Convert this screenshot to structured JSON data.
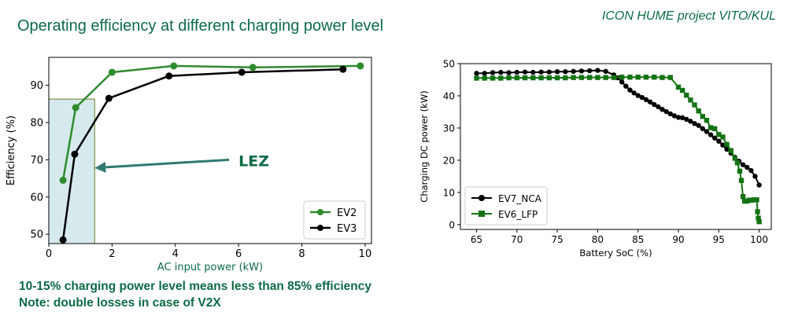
{
  "slide": {
    "title": "Operating efficiency at different charging power level",
    "project": "ICON HUME project VITO/KUL",
    "note_line1": "10-15% charging power level means less than 85% efficiency",
    "note_line2": "Note: double losses in case of V2X"
  },
  "colors": {
    "title_green": "#0b6b45",
    "ev2_green": "#2e8b2e",
    "ev3_black": "#000000",
    "ev6_green": "#137313",
    "lez_fill": "#cfe6ea",
    "lez_arrow": "#2f7a72"
  },
  "chart_data": [
    {
      "type": "line",
      "xlabel": "AC input power (kW)",
      "ylabel": "Efficiency (%)",
      "xlim": [
        0,
        10.2
      ],
      "ylim": [
        47.5,
        97.5
      ],
      "xticks": [
        0,
        2,
        4,
        6,
        8,
        10
      ],
      "yticks": [
        50,
        60,
        70,
        80,
        90
      ],
      "legend_position": "bottom-right",
      "series": [
        {
          "name": "EV2",
          "color": "#2e8b2e",
          "marker": "circle",
          "x": [
            0.45,
            0.85,
            2.0,
            3.95,
            6.45,
            9.85
          ],
          "y": [
            64.5,
            84.0,
            93.5,
            95.2,
            94.8,
            95.2
          ]
        },
        {
          "name": "EV3",
          "color": "#000000",
          "marker": "circle",
          "x": [
            0.45,
            0.82,
            1.9,
            3.8,
            6.1,
            9.3
          ],
          "y": [
            48.5,
            71.5,
            86.5,
            92.5,
            93.5,
            94.3
          ]
        }
      ],
      "annotation": {
        "text": "LEZ",
        "span_x": [
          0,
          1.45
        ],
        "span_y": [
          47.5,
          86.3
        ],
        "arrow_from_x": 5.7,
        "arrow_from_y": 70.0,
        "arrow_to_x": 1.45,
        "arrow_to_y": 67.8
      }
    },
    {
      "type": "line",
      "xlabel": "Battery SoC (%)",
      "ylabel": "Charging DC power (kW)",
      "xlim": [
        63.0,
        101.5
      ],
      "ylim": [
        -1.5,
        50.0
      ],
      "xticks": [
        65,
        70,
        75,
        80,
        85,
        90,
        95,
        100
      ],
      "yticks": [
        0,
        10,
        20,
        30,
        40,
        50
      ],
      "legend_position": "bottom-left",
      "series": [
        {
          "name": "EV7_NCA",
          "color": "#000000",
          "marker": "circle",
          "x": [
            65,
            66,
            67,
            68,
            69,
            70,
            71,
            72,
            73,
            74,
            75,
            76,
            77,
            78,
            79,
            80,
            81,
            82,
            82.5,
            83,
            83.5,
            84,
            84.5,
            85,
            85.5,
            86,
            86.5,
            87,
            87.5,
            88,
            88.5,
            89,
            89.5,
            90,
            90.5,
            91,
            91.5,
            92,
            92.5,
            93,
            93.5,
            94,
            94.5,
            95,
            95.5,
            96,
            96.5,
            97,
            97.5,
            98,
            98.5,
            99,
            99.5,
            100
          ],
          "y": [
            47.0,
            47.0,
            47.2,
            47.3,
            47.2,
            47.3,
            47.4,
            47.3,
            47.4,
            47.4,
            47.5,
            47.5,
            47.6,
            47.7,
            47.8,
            47.9,
            47.6,
            46.5,
            45.6,
            44.3,
            43.0,
            41.8,
            40.9,
            40.1,
            39.5,
            38.8,
            38.1,
            37.3,
            36.6,
            35.8,
            35.1,
            34.4,
            33.8,
            33.3,
            33.2,
            32.7,
            32.1,
            31.4,
            30.8,
            29.8,
            28.9,
            27.9,
            26.9,
            25.9,
            24.7,
            23.4,
            22.2,
            20.9,
            19.7,
            18.6,
            17.8,
            16.8,
            15.0,
            12.3
          ]
        },
        {
          "name": "EV6_LFP",
          "color": "#137313",
          "marker": "square",
          "x": [
            65,
            66,
            67,
            68,
            69,
            70,
            71,
            72,
            73,
            74,
            75,
            76,
            77,
            78,
            79,
            80,
            81,
            82,
            83,
            84,
            85,
            86,
            87,
            88,
            89,
            90,
            90.5,
            91,
            91.5,
            92,
            92.5,
            93,
            93.5,
            94,
            94.5,
            95,
            95.5,
            96,
            96.5,
            97,
            97.3,
            97.6,
            97.8,
            98.0,
            98.2,
            98.5,
            98.8,
            99.1,
            99.4,
            99.7,
            99.8,
            99.9,
            100
          ],
          "y": [
            45.5,
            45.5,
            45.5,
            45.5,
            45.6,
            45.6,
            45.6,
            45.6,
            45.6,
            45.6,
            45.6,
            45.6,
            45.7,
            45.7,
            45.7,
            45.7,
            45.7,
            45.7,
            45.8,
            45.8,
            45.8,
            45.8,
            45.8,
            45.7,
            45.7,
            42.7,
            41.7,
            40.2,
            38.7,
            37.2,
            35.3,
            33.6,
            32.4,
            30.1,
            29.8,
            28.0,
            27.2,
            24.9,
            23.0,
            20.6,
            19.2,
            16.6,
            13.7,
            8.7,
            7.3,
            7.3,
            7.6,
            7.6,
            7.7,
            7.7,
            4.0,
            2.0,
            0.9
          ]
        }
      ]
    }
  ]
}
